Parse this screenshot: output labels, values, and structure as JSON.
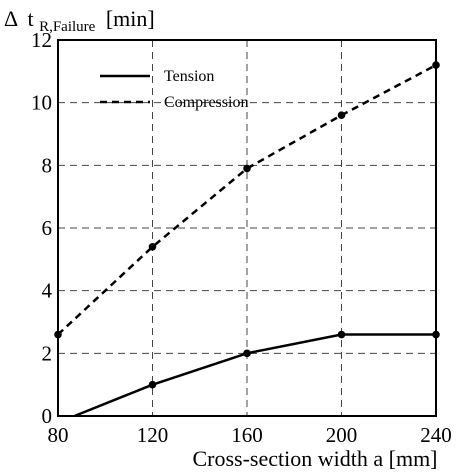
{
  "chart_data": {
    "type": "line",
    "ylabel": {
      "delta": "Δ",
      "t": "t",
      "sub": "R,Failure",
      "unit": "[min]"
    },
    "xlabel": "Cross-section width a [mm]",
    "xlim": [
      80,
      240
    ],
    "ylim": [
      0,
      12
    ],
    "x_ticks": [
      80,
      120,
      160,
      200,
      240
    ],
    "y_ticks": [
      0,
      2,
      4,
      6,
      8,
      10,
      12
    ],
    "grid": true,
    "legend_position": "top-left",
    "series": [
      {
        "name": "Tension",
        "line_style": "solid",
        "line": [
          [
            87,
            0
          ],
          [
            120,
            1.0
          ],
          [
            160,
            2.0
          ],
          [
            200,
            2.6
          ],
          [
            240,
            2.6
          ]
        ],
        "markers": [
          [
            120,
            1.0
          ],
          [
            160,
            2.0
          ],
          [
            200,
            2.6
          ],
          [
            240,
            2.6
          ]
        ]
      },
      {
        "name": "Compression",
        "line_style": "dashed",
        "line": [
          [
            80,
            2.6
          ],
          [
            120,
            5.4
          ],
          [
            160,
            7.9
          ],
          [
            200,
            9.6
          ],
          [
            240,
            11.2
          ]
        ],
        "markers": [
          [
            80,
            2.6
          ],
          [
            120,
            5.4
          ],
          [
            160,
            7.9
          ],
          [
            200,
            9.6
          ],
          [
            240,
            11.2
          ]
        ]
      }
    ]
  }
}
